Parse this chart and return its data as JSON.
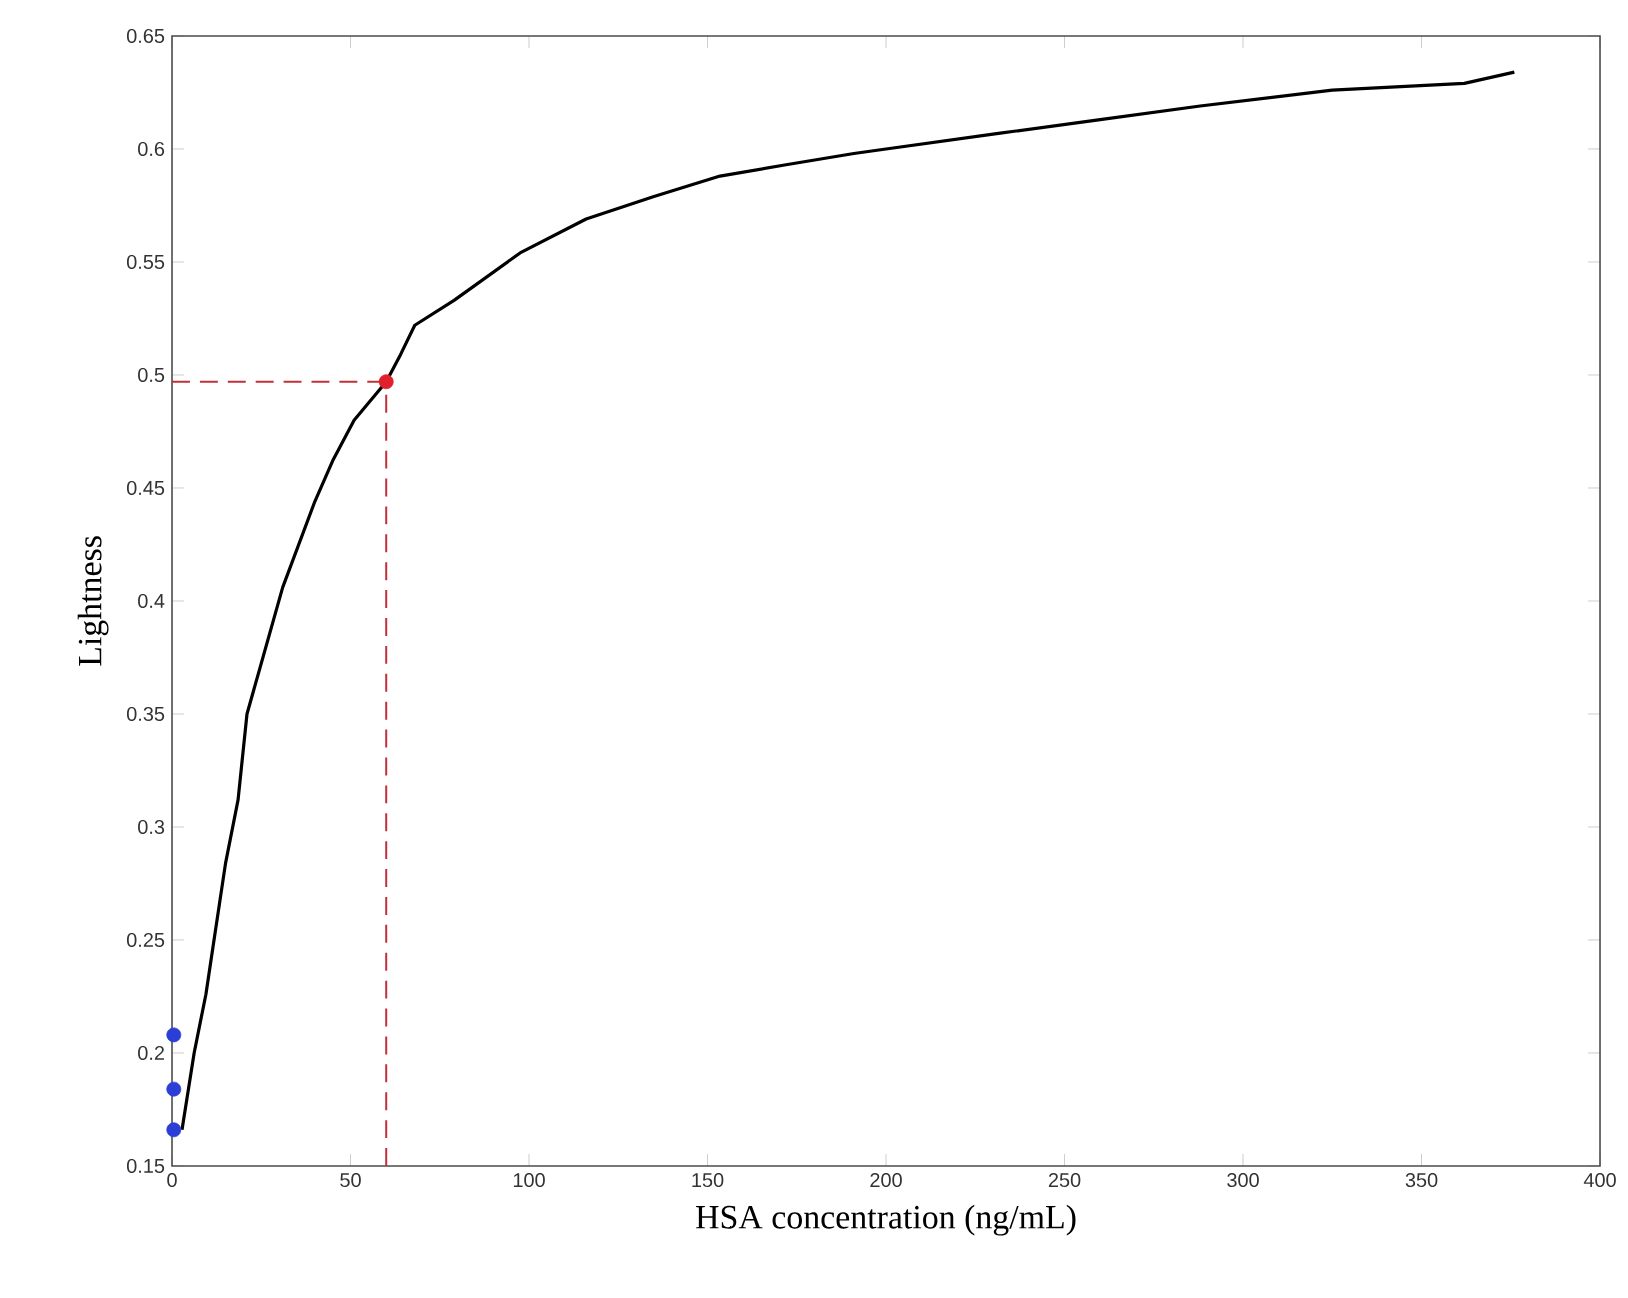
{
  "chart_data": {
    "type": "line",
    "xlabel": "HSA concentration (ng/mL)",
    "ylabel": "Lightness",
    "xlim": [
      0,
      400
    ],
    "xticks": [
      0,
      50,
      100,
      150,
      200,
      250,
      300,
      350,
      400
    ],
    "ylim": [
      0.15,
      0.65
    ],
    "yticks": [
      0.15,
      0.2,
      0.25,
      0.3,
      0.35,
      0.4,
      0.45,
      0.5,
      0.55,
      0.6,
      0.65
    ],
    "series": [
      {
        "color": "#000000",
        "marker": "none",
        "x": [
          2.8,
          6.2,
          9.5,
          11.2,
          15,
          18.5,
          21,
          31,
          40,
          45,
          51,
          60,
          64,
          68,
          79,
          97.5,
          116,
          135,
          153.5,
          172,
          191,
          200,
          232,
          260,
          288,
          325,
          362,
          376
        ],
        "values": [
          0.166,
          0.2,
          0.226,
          0.244,
          0.284,
          0.312,
          0.35,
          0.406,
          0.444,
          0.462,
          0.48,
          0.497,
          0.509,
          0.522,
          0.533,
          0.554,
          0.569,
          0.579,
          0.588,
          0.593,
          0.598,
          0.6,
          0.607,
          0.613,
          0.619,
          0.626,
          0.629,
          0.634
        ]
      },
      {
        "type": "scatter",
        "color": "#2b3fd6",
        "marker": "circle",
        "x": [
          0.5,
          0.5,
          0.5
        ],
        "values": [
          0.166,
          0.184,
          0.208
        ]
      },
      {
        "type": "scatter",
        "color": "#e0202a",
        "marker": "circle",
        "x": [
          60
        ],
        "values": [
          0.497
        ]
      }
    ],
    "ref_lines": [
      {
        "axis": "x",
        "value": 60,
        "color": "#c0303a",
        "line_style": "dashed"
      },
      {
        "axis": "y",
        "value": 0.497,
        "color": "#c0303a",
        "line_style": "dashed"
      }
    ]
  }
}
